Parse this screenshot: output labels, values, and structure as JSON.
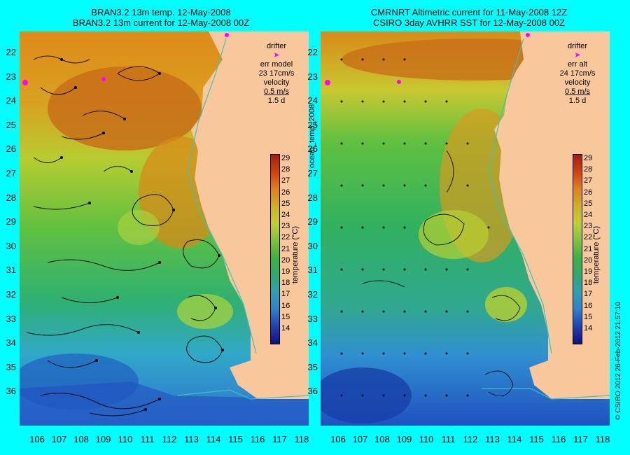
{
  "left": {
    "title_line1": "BRAN3.2 13m temp. 12-May-2008",
    "title_line2": "BRAN3.2 13m current for 12-May-2008 00Z",
    "legend": {
      "drifter": "drifter",
      "err": "err model",
      "err_val": "23 17cm/s",
      "velocity": "velocity",
      "vel_scale": "0.5 m/s",
      "vel_days": "1.5 d"
    }
  },
  "right": {
    "title_line1": "CMRNRT Altimetric current for 11-May-2008 12Z",
    "title_line2": "CSIRO 3day AVHRR SST for 12-May-2008 00Z",
    "legend": {
      "drifter": "drifter",
      "err": "err alt",
      "err_val": "24 17cm/s",
      "velocity": "velocity",
      "vel_scale": "0.5 m/s",
      "vel_days": "1.5 d"
    }
  },
  "side_label": "ocean_temp_2008",
  "colorbar": {
    "title": "temperature (°C)",
    "ticks": [
      "29",
      "28",
      "27",
      "26",
      "25",
      "24",
      "23",
      "22",
      "21",
      "20",
      "19",
      "18",
      "17",
      "16",
      "15",
      "14"
    ]
  },
  "lat_labels": [
    "22",
    "23",
    "24",
    "25",
    "26",
    "27",
    "28",
    "29",
    "30",
    "31",
    "32",
    "33",
    "34",
    "35",
    "36"
  ],
  "lon_labels": [
    "106",
    "107",
    "108",
    "109",
    "110",
    "111",
    "112",
    "113",
    "114",
    "115",
    "116",
    "117",
    "118"
  ],
  "copyright": "© CSIRO 2012   26-Feb-2012 21:57:10",
  "colors": {
    "background": "#00ffff",
    "land": "#f9c79c",
    "drifter": "#ff00ff",
    "coast_track": "#40c0c0"
  }
}
